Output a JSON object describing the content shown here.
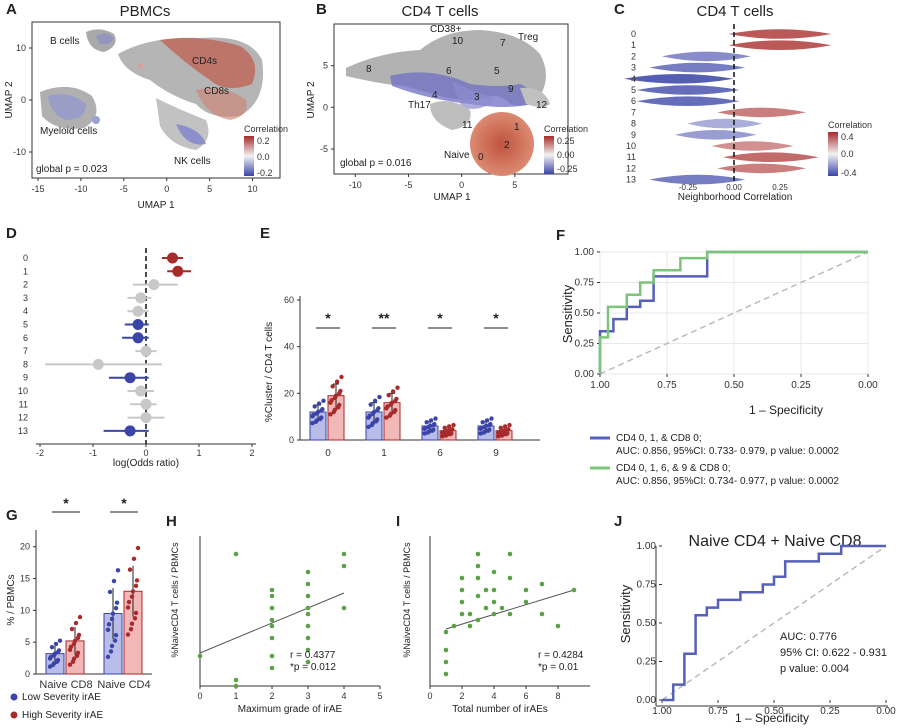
{
  "colors": {
    "low": "#3b44a8",
    "high": "#a82a2a",
    "low_fill": "#b7bce8",
    "high_fill": "#f2b8b8",
    "green": "#5aa148",
    "roc_blue": "#5560b8",
    "roc_green": "#7cc47a",
    "gray": "#9a9a9a"
  },
  "chart_data": [
    {
      "panel": "A",
      "type": "scatter",
      "title": "PBMCs",
      "xlabel": "UMAP 1",
      "ylabel": "UMAP 2",
      "xticks": [
        "-15",
        "-10",
        "-5",
        "0",
        "5",
        "10"
      ],
      "yticks": [
        "10",
        "0",
        "-10"
      ],
      "clusters": [
        "B cells",
        "CD4s",
        "CD8s",
        "Myeloid cells",
        "NK cells"
      ],
      "annotation": "global p = 0.023",
      "legend": {
        "title": "Correlation",
        "ticks": [
          "0.2",
          "0.0",
          "-0.2"
        ]
      }
    },
    {
      "panel": "B",
      "type": "scatter",
      "title": "CD4 T cells",
      "xlabel": "UMAP 1",
      "ylabel": "UMAP 2",
      "xticks": [
        "-10",
        "-5",
        "0",
        "5"
      ],
      "yticks": [
        "5",
        "0",
        "-5"
      ],
      "labels": [
        "CD38+",
        "10",
        "7",
        "Treg",
        "8",
        "6",
        "5",
        "9",
        "4",
        "3",
        "12",
        "Th17",
        "11",
        "1",
        "2",
        "Naive",
        "0"
      ],
      "annotation": "global p = 0.016",
      "legend": {
        "title": "Correlation",
        "ticks": [
          "0.25",
          "0.00",
          "-0.25"
        ]
      }
    },
    {
      "panel": "C",
      "type": "violin",
      "title": "CD4 T cells",
      "xlabel": "Neighborhood Correlation",
      "categories": [
        "0",
        "1",
        "2",
        "3",
        "4",
        "5",
        "6",
        "7",
        "8",
        "9",
        "10",
        "11",
        "12",
        "13"
      ],
      "center_correlation": [
        0.25,
        0.25,
        -0.15,
        -0.2,
        -0.3,
        -0.25,
        -0.25,
        0.15,
        -0.05,
        -0.1,
        0.1,
        0.2,
        0.15,
        -0.2
      ],
      "xticks": [
        "-0.25",
        "0.00",
        "0.25"
      ],
      "legend": {
        "title": "Correlation",
        "ticks": [
          "0.4",
          "0.0",
          "-0.4"
        ]
      }
    },
    {
      "panel": "D",
      "type": "scatter",
      "xlabel": "log(Odds ratio)",
      "categories": [
        "0",
        "1",
        "2",
        "3",
        "4",
        "5",
        "6",
        "7",
        "8",
        "9",
        "10",
        "11",
        "12",
        "13"
      ],
      "estimate": [
        0.5,
        0.6,
        0.15,
        -0.1,
        -0.15,
        -0.15,
        -0.15,
        0.0,
        -0.9,
        -0.3,
        -0.1,
        0.0,
        0.0,
        -0.3
      ],
      "ci_low": [
        0.3,
        0.4,
        -0.25,
        -0.35,
        -0.35,
        -0.4,
        -0.45,
        -0.2,
        -1.9,
        -0.7,
        -0.35,
        -0.3,
        -0.35,
        -0.8
      ],
      "ci_high": [
        0.7,
        0.85,
        0.6,
        0.1,
        0.05,
        0.05,
        0.05,
        0.2,
        0.3,
        0.05,
        0.15,
        0.2,
        0.35,
        0.05
      ],
      "group": [
        "high",
        "high",
        "gray",
        "gray",
        "gray",
        "low",
        "low",
        "gray",
        "gray",
        "low",
        "gray",
        "gray",
        "gray",
        "low"
      ],
      "xlim": [
        -2,
        2
      ],
      "xticks": [
        "-2",
        "-1",
        "0",
        "1",
        "2"
      ]
    },
    {
      "panel": "E",
      "type": "bar",
      "ylabel": "%Cluster / CD4 T cells",
      "categories": [
        "0",
        "1",
        "6",
        "9"
      ],
      "series": [
        {
          "group": "low",
          "values": [
            12,
            12,
            6,
            6
          ],
          "err": [
            3,
            4,
            2,
            2
          ]
        },
        {
          "group": "high",
          "values": [
            19,
            16,
            4,
            4
          ],
          "err": [
            5,
            4,
            1.5,
            1.5
          ]
        }
      ],
      "significance": [
        "*",
        "**",
        "*",
        "*"
      ],
      "ylim": [
        0,
        60
      ],
      "yticks": [
        "0",
        "20",
        "40",
        "60"
      ]
    },
    {
      "panel": "F",
      "type": "line",
      "xlabel": "1 – Specificity",
      "ylabel": "Sensitivity",
      "xticks": [
        "1.00",
        "0.75",
        "0.50",
        "0.25",
        "0.00"
      ],
      "yticks": [
        "0.00",
        "0.25",
        "0.50",
        "0.75",
        "1.00"
      ],
      "series": [
        {
          "name": "CD4 0, 1, & CD8 0;",
          "stats": "AUC: 0.856, 95%CI: 0.733- 0.979, p value: 0.0002",
          "fpr": [
            0,
            0,
            0.05,
            0.05,
            0.1,
            0.1,
            0.15,
            0.15,
            0.2,
            0.2,
            0.4,
            0.4,
            0.6,
            1
          ],
          "tpr": [
            0,
            0.35,
            0.35,
            0.45,
            0.45,
            0.55,
            0.55,
            0.6,
            0.6,
            0.8,
            0.8,
            1,
            1,
            1
          ]
        },
        {
          "name": "CD4 0, 1, 6, & 9 & CD8 0;",
          "stats": "AUC: 0.856, 95%CI: 0.734- 0.977, p value: 0.0002",
          "fpr": [
            0,
            0,
            0.03,
            0.03,
            0.1,
            0.1,
            0.15,
            0.15,
            0.2,
            0.2,
            0.3,
            0.3,
            0.4,
            0.4,
            1
          ],
          "tpr": [
            0,
            0.3,
            0.3,
            0.55,
            0.55,
            0.65,
            0.65,
            0.75,
            0.75,
            0.85,
            0.85,
            0.95,
            0.95,
            1,
            1
          ]
        }
      ]
    },
    {
      "panel": "G",
      "type": "bar",
      "ylabel": "% / PBMCs",
      "categories": [
        "Naive CD8",
        "Naive CD4"
      ],
      "series": [
        {
          "name": "Low Severity irAE",
          "group": "low",
          "values": [
            3.2,
            9.5
          ],
          "err": [
            1.2,
            4
          ]
        },
        {
          "name": "High Severity irAE",
          "group": "high",
          "values": [
            5.2,
            13
          ],
          "err": [
            2.2,
            4
          ]
        }
      ],
      "significance": [
        "*",
        "*"
      ],
      "ylim": [
        0,
        22
      ],
      "yticks": [
        "0",
        "5",
        "10",
        "15",
        "20"
      ]
    },
    {
      "panel": "H",
      "type": "scatter",
      "xlabel": "Maximum grade of irAE",
      "ylabel": "%NaiveCD4 T cells / PBMCs",
      "x": [
        0,
        1,
        1,
        1,
        2,
        2,
        2,
        2,
        2,
        2,
        2,
        2,
        3,
        3,
        3,
        3,
        3,
        3,
        3,
        3,
        3,
        4,
        4,
        4
      ],
      "y": [
        5,
        1,
        0,
        22,
        3,
        5,
        8,
        10,
        11,
        13,
        15,
        16,
        4,
        6,
        8,
        10,
        12,
        13,
        15,
        17,
        19,
        13,
        20,
        22
      ],
      "fit": [
        [
          0,
          5.5
        ],
        [
          4,
          15.5
        ]
      ],
      "xlim": [
        0,
        5
      ],
      "ylim": [
        0,
        25
      ],
      "xticks": [
        "0",
        "1",
        "2",
        "3",
        "4",
        "5"
      ],
      "annotation": [
        "r = 0.4377",
        "*p = 0.012"
      ]
    },
    {
      "panel": "I",
      "type": "scatter",
      "xlabel": "Total number of irAEs",
      "ylabel": "%NaiveCD4 T cells / PBMCs",
      "x": [
        1,
        1,
        1,
        1,
        1.5,
        2,
        2,
        2,
        2,
        2.5,
        2.5,
        3,
        3,
        3,
        3,
        3,
        3.5,
        3.5,
        4,
        4,
        4,
        4,
        4.5,
        5,
        5,
        5,
        6,
        6,
        7,
        7,
        8,
        9
      ],
      "y": [
        2,
        4,
        6,
        9,
        10,
        12,
        14,
        16,
        18,
        12,
        10,
        20,
        22,
        18,
        15,
        11,
        13,
        16,
        12,
        14,
        16,
        19,
        13,
        22,
        18,
        12,
        16,
        14,
        17,
        12,
        10,
        16
      ],
      "fit": [
        [
          1,
          9.5
        ],
        [
          9,
          16
        ]
      ],
      "xlim": [
        0,
        10
      ],
      "ylim": [
        0,
        25
      ],
      "xticks": [
        "0",
        "2",
        "4",
        "6",
        "8"
      ],
      "annotation": [
        "r = 0.4284",
        "*p = 0.01"
      ]
    },
    {
      "panel": "J",
      "type": "line",
      "title": "Naive CD4 + Naive CD8",
      "xlabel": "1 – Specificity",
      "ylabel": "Sensitivity",
      "xticks": [
        "1.00",
        "0.75",
        "0.50",
        "0.25",
        "0.00"
      ],
      "yticks": [
        "0.00",
        "0.25",
        "0.50",
        "0.75",
        "1.00"
      ],
      "fpr": [
        0,
        0.05,
        0.05,
        0.1,
        0.1,
        0.15,
        0.15,
        0.2,
        0.2,
        0.25,
        0.25,
        0.35,
        0.35,
        0.45,
        0.45,
        0.5,
        0.5,
        0.55,
        0.55,
        0.7,
        0.7,
        0.8,
        0.8,
        1
      ],
      "tpr": [
        0,
        0,
        0.1,
        0.1,
        0.3,
        0.3,
        0.55,
        0.55,
        0.6,
        0.6,
        0.65,
        0.65,
        0.7,
        0.7,
        0.75,
        0.75,
        0.8,
        0.8,
        0.9,
        0.9,
        0.95,
        0.95,
        1,
        1
      ],
      "annotation": [
        "AUC: 0.776",
        "95% CI: 0.622 - 0.931",
        "p value: 0.004"
      ]
    }
  ]
}
